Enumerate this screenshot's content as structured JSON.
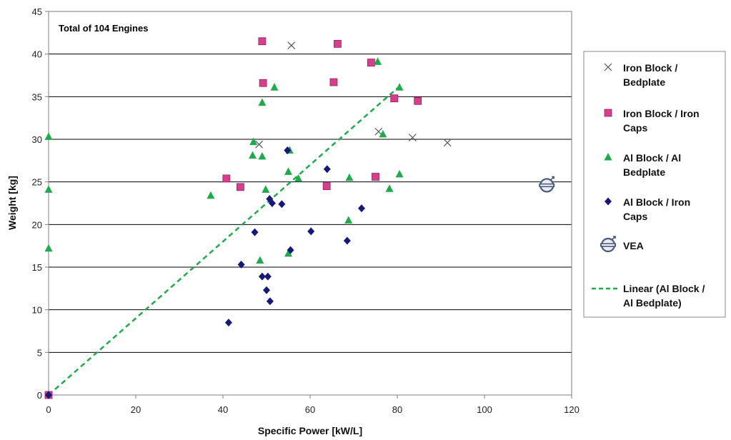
{
  "chart_data": {
    "type": "scatter",
    "title": "",
    "annotation": "Total of 104 Engines",
    "xlabel": "Specific Power [kW/L]",
    "ylabel": "Weight [kg]",
    "xlim": [
      0,
      120
    ],
    "ylim": [
      0,
      45
    ],
    "x_ticks": [
      "0",
      "20",
      "40",
      "60",
      "80",
      "100",
      "120"
    ],
    "y_ticks": [
      "0",
      "5",
      "10",
      "15",
      "20",
      "25",
      "30",
      "35",
      "40",
      "45"
    ],
    "grid": "horizontal",
    "legend_position": "right",
    "series": [
      {
        "name": "Iron Block / Bedplate",
        "name_lines": [
          "Iron Block /",
          "Bedplate"
        ],
        "marker": "x",
        "color": "#555555",
        "points": [
          [
            55.7,
            41.0
          ],
          [
            48.3,
            29.4
          ],
          [
            75.7,
            30.9
          ],
          [
            83.5,
            30.2
          ],
          [
            91.5,
            29.6
          ]
        ]
      },
      {
        "name": "Iron Block / Iron Caps",
        "name_lines": [
          "Iron Block / Iron",
          "Caps"
        ],
        "marker": "square",
        "color": "#d63f8c",
        "points": [
          [
            49.0,
            41.5
          ],
          [
            66.3,
            41.2
          ],
          [
            74.0,
            39.0
          ],
          [
            49.2,
            36.6
          ],
          [
            65.4,
            36.7
          ],
          [
            79.3,
            34.8
          ],
          [
            84.7,
            34.5
          ],
          [
            40.8,
            25.4
          ],
          [
            44.0,
            24.4
          ],
          [
            63.8,
            24.5
          ],
          [
            75.0,
            25.6
          ],
          [
            0.0,
            0.0
          ]
        ]
      },
      {
        "name": "Al Block / Al Bedplate",
        "name_lines": [
          "Al Block / Al",
          "Bedplate"
        ],
        "marker": "triangle",
        "color": "#1faa4b",
        "points": [
          [
            75.5,
            39.1
          ],
          [
            51.8,
            36.1
          ],
          [
            80.5,
            36.1
          ],
          [
            49.0,
            34.3
          ],
          [
            0.0,
            30.3
          ],
          [
            76.7,
            30.6
          ],
          [
            47.0,
            29.7
          ],
          [
            55.3,
            28.7
          ],
          [
            46.8,
            28.1
          ],
          [
            49.0,
            28.0
          ],
          [
            55.0,
            26.2
          ],
          [
            57.3,
            25.4
          ],
          [
            69.0,
            25.5
          ],
          [
            80.5,
            25.9
          ],
          [
            0.0,
            24.1
          ],
          [
            37.2,
            23.4
          ],
          [
            49.8,
            24.1
          ],
          [
            78.2,
            24.2
          ],
          [
            68.8,
            20.5
          ],
          [
            0.0,
            17.2
          ],
          [
            48.5,
            15.8
          ],
          [
            55.0,
            16.6
          ]
        ]
      },
      {
        "name": "Al Block / Iron Caps",
        "name_lines": [
          "Al Block / Iron",
          "Caps"
        ],
        "marker": "diamond",
        "color": "#16187a",
        "points": [
          [
            54.8,
            28.7
          ],
          [
            63.9,
            26.5
          ],
          [
            50.7,
            23.0
          ],
          [
            51.3,
            22.5
          ],
          [
            53.5,
            22.4
          ],
          [
            71.8,
            21.9
          ],
          [
            47.3,
            19.1
          ],
          [
            60.2,
            19.2
          ],
          [
            68.5,
            18.1
          ],
          [
            55.5,
            17.0
          ],
          [
            44.2,
            15.3
          ],
          [
            49.0,
            13.9
          ],
          [
            50.3,
            13.9
          ],
          [
            50.0,
            12.3
          ],
          [
            50.8,
            11.0
          ],
          [
            41.3,
            8.5
          ],
          [
            0.0,
            0.0
          ]
        ]
      },
      {
        "name": "VEA",
        "name_lines": [
          "VEA"
        ],
        "marker": "volvo-logo",
        "color": "#4a5a78",
        "points": [
          [
            114.3,
            24.6
          ]
        ]
      }
    ],
    "trendline": {
      "name": "Linear (Al Block / Al Bedplate)",
      "name_lines": [
        "Linear (Al Block /",
        "Al Bedplate)"
      ],
      "of_series": "Al Block / Al Bedplate",
      "style": "dashed",
      "color": "#1faa4b",
      "from": [
        0,
        0
      ],
      "to": [
        80,
        36
      ]
    }
  }
}
